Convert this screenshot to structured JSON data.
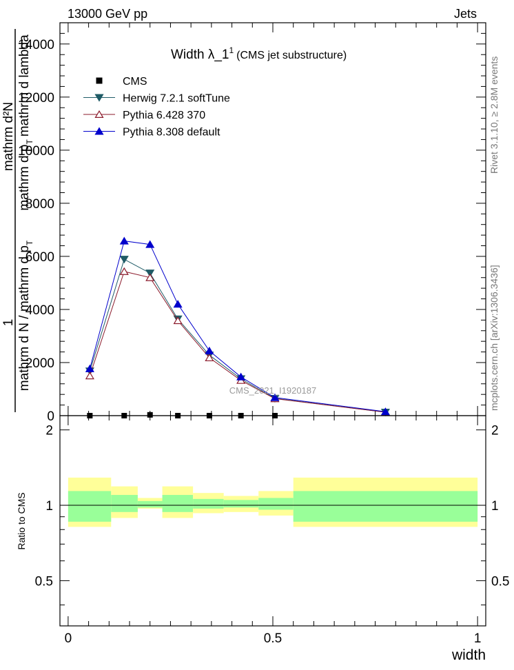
{
  "header": {
    "energy_label": "13000 GeV pp",
    "process_label": "Jets"
  },
  "side_labels": {
    "rivet": "Rivet 3.1.10, ≥ 2.8M events",
    "mcplots": "mcplots.cern.ch [arXiv:1306.3436]"
  },
  "watermark": "CMS_2021_I1920187",
  "chart_data": [
    {
      "type": "line",
      "title": "Width λ_1",
      "title_superscript": "1",
      "subtitle": "(CMS jet substructure)",
      "ylabel": {
        "numerator": "1",
        "denominator": "mathrm d N / mathrm d p",
        "sub": "T",
        "numerator_top": "mathrm d²N",
        "denominator_top": "mathrm d p",
        "denominator_top_rest": "mathrm d lambda"
      },
      "xlabel": "",
      "xlim": [
        -0.02,
        1.02
      ],
      "ylim": [
        0,
        14800
      ],
      "yticks": [
        0,
        2000,
        4000,
        6000,
        8000,
        10000,
        12000,
        14000
      ],
      "ytick_labels": [
        "0",
        "2000",
        "4000",
        "6000",
        "8000",
        "10000",
        "12000",
        "14000"
      ],
      "legend_position": "top-left",
      "series": [
        {
          "name": "CMS",
          "marker": "square",
          "color": "#000000",
          "x": [
            0.053,
            0.137,
            0.2,
            0.268,
            0.345,
            0.422,
            0.505
          ],
          "y": [
            0,
            0,
            30,
            0,
            0,
            0,
            0
          ]
        },
        {
          "name": "Herwig 7.2.1 softTune",
          "marker": "triangle-down",
          "color": "#1f5b66",
          "x": [
            0.053,
            0.137,
            0.2,
            0.268,
            0.345,
            0.422,
            0.505,
            0.775
          ],
          "y": [
            1680,
            5890,
            5370,
            3640,
            2280,
            1390,
            650,
            130
          ]
        },
        {
          "name": "Pythia 6.428 370",
          "marker": "triangle-up-open",
          "color": "#8b1a2b",
          "x": [
            0.053,
            0.137,
            0.2,
            0.268,
            0.345,
            0.422,
            0.505,
            0.775
          ],
          "y": [
            1500,
            5430,
            5200,
            3580,
            2180,
            1330,
            640,
            130
          ]
        },
        {
          "name": "Pythia 8.308 default",
          "marker": "triangle-up",
          "color": "#0000cc",
          "x": [
            0.053,
            0.137,
            0.2,
            0.268,
            0.345,
            0.422,
            0.505,
            0.775
          ],
          "y": [
            1770,
            6580,
            6450,
            4200,
            2440,
            1460,
            680,
            150
          ]
        }
      ]
    },
    {
      "type": "area",
      "ylabel": "Ratio to CMS",
      "xlabel": "width",
      "xlim": [
        -0.02,
        1.02
      ],
      "ylim": [
        0.33,
        2.28
      ],
      "yticks": [
        0.5,
        1,
        2
      ],
      "ytick_labels": [
        "0.5",
        "1",
        "2"
      ],
      "xticks": [
        0,
        0.5,
        1
      ],
      "xtick_labels": [
        "0",
        "0.5",
        "1"
      ],
      "reference_line": 1,
      "bands": [
        {
          "x0": 0.0,
          "x1": 0.105,
          "inner": [
            0.86,
            1.14
          ],
          "outer": [
            0.82,
            1.29
          ]
        },
        {
          "x0": 0.105,
          "x1": 0.17,
          "inner": [
            0.94,
            1.1
          ],
          "outer": [
            0.89,
            1.19
          ]
        },
        {
          "x0": 0.17,
          "x1": 0.23,
          "inner": [
            0.98,
            1.04
          ],
          "outer": [
            0.97,
            1.07
          ]
        },
        {
          "x0": 0.23,
          "x1": 0.305,
          "inner": [
            0.94,
            1.1
          ],
          "outer": [
            0.89,
            1.19
          ]
        },
        {
          "x0": 0.305,
          "x1": 0.38,
          "inner": [
            0.97,
            1.06
          ],
          "outer": [
            0.93,
            1.12
          ]
        },
        {
          "x0": 0.38,
          "x1": 0.465,
          "inner": [
            0.98,
            1.05
          ],
          "outer": [
            0.94,
            1.09
          ]
        },
        {
          "x0": 0.465,
          "x1": 0.55,
          "inner": [
            0.96,
            1.07
          ],
          "outer": [
            0.91,
            1.14
          ]
        },
        {
          "x0": 0.55,
          "x1": 1.0,
          "inner": [
            0.86,
            1.14
          ],
          "outer": [
            0.82,
            1.29
          ]
        }
      ],
      "colors": {
        "inner": "#99ff99",
        "outer": "#ffff99"
      }
    }
  ]
}
